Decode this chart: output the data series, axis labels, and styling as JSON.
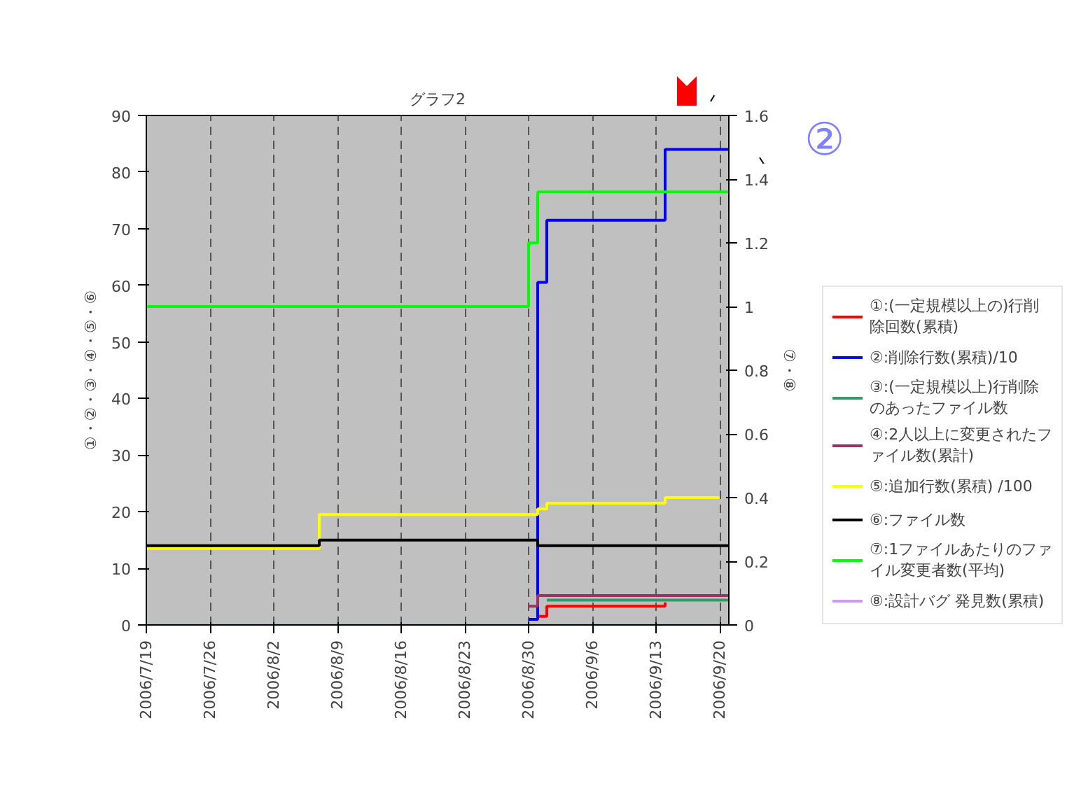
{
  "chart_data": {
    "type": "step",
    "title": "グラフ2",
    "ylabel": "①・②・③・④・⑤・⑥",
    "y2label": "⑦・⑧",
    "annotations": [
      "②"
    ],
    "xlim": [
      "2006-07-19",
      "2006-09-21"
    ],
    "xticks": [
      {
        "value": "2006-07-19",
        "label": "2006/7/19"
      },
      {
        "value": "2006-07-26",
        "label": "2006/7/26"
      },
      {
        "value": "2006-08-02",
        "label": "2006/8/2"
      },
      {
        "value": "2006-08-09",
        "label": "2006/8/9"
      },
      {
        "value": "2006-08-16",
        "label": "2006/8/16"
      },
      {
        "value": "2006-08-23",
        "label": "2006/8/23"
      },
      {
        "value": "2006-08-30",
        "label": "2006/8/30"
      },
      {
        "value": "2006-09-06",
        "label": "2006/9/6"
      },
      {
        "value": "2006-09-13",
        "label": "2006/9/13"
      },
      {
        "value": "2006-09-20",
        "label": "2006/9/20"
      }
    ],
    "ylim": [
      0,
      90
    ],
    "yticks": [
      0,
      10,
      20,
      30,
      40,
      50,
      60,
      70,
      80,
      90
    ],
    "y2lim": [
      0,
      1.6
    ],
    "y2ticks": [
      0,
      0.2,
      0.4,
      0.6,
      0.8,
      1,
      1.2,
      1.4,
      1.6
    ],
    "grid": "x",
    "legend": "right",
    "line_style": "solid",
    "marker": "none",
    "series": [
      {
        "name": "①:(一定規模以上の)行削除回数(累積)",
        "color": "#ff0000",
        "x": [
          "2006-08-31",
          "2006-09-01",
          "2006-09-14"
        ],
        "values": [
          1.5,
          3.3,
          4
        ]
      },
      {
        "name": "②:削除行数(累積)/10",
        "color": "#0000ff",
        "x": [
          "2006-08-30",
          "2006-08-31",
          "2006-09-01",
          "2006-09-14",
          "2006-09-21"
        ],
        "values": [
          1,
          60.5,
          71.5,
          84,
          84
        ]
      },
      {
        "name": "③:(一定規模以上)行削除のあったファイル数",
        "color": "#339966",
        "x": [
          "2006-09-01",
          "2006-09-21"
        ],
        "values": [
          4.4,
          4.4
        ]
      },
      {
        "name": "④:2人以上に変更されたファイル数(累計)",
        "color": "#993366",
        "x": [
          "2006-08-30",
          "2006-08-31",
          "2006-09-21"
        ],
        "values": [
          3.3,
          5.2,
          5.2
        ]
      },
      {
        "name": "⑤:追加行数(累積) /100",
        "color": "#ffff00",
        "x": [
          "2006-07-19",
          "2006-08-07",
          "2006-08-31",
          "2006-09-01",
          "2006-09-14",
          "2006-09-20"
        ],
        "values": [
          13.5,
          19.5,
          20.5,
          21.5,
          22.5,
          22.5
        ]
      },
      {
        "name": "⑥:ファイル数",
        "color": "#000000",
        "x": [
          "2006-07-19",
          "2006-08-07",
          "2006-08-31",
          "2006-09-21"
        ],
        "values": [
          14,
          15,
          14,
          14
        ]
      },
      {
        "name": "⑦:1ファイルあたりのファイル変更者数(平均)",
        "color": "#00ff00",
        "axis": "y2",
        "x": [
          "2006-07-19",
          "2006-08-30",
          "2006-08-31",
          "2006-09-21"
        ],
        "values": [
          1,
          1.2,
          1.36,
          1.36
        ]
      },
      {
        "name": "⑧:設計バグ 発見数(累積)",
        "color": "#cc99ff",
        "axis": "y2",
        "x": [
          "2006-07-19",
          "2006-09-21"
        ],
        "values": [
          0,
          0
        ]
      }
    ]
  }
}
